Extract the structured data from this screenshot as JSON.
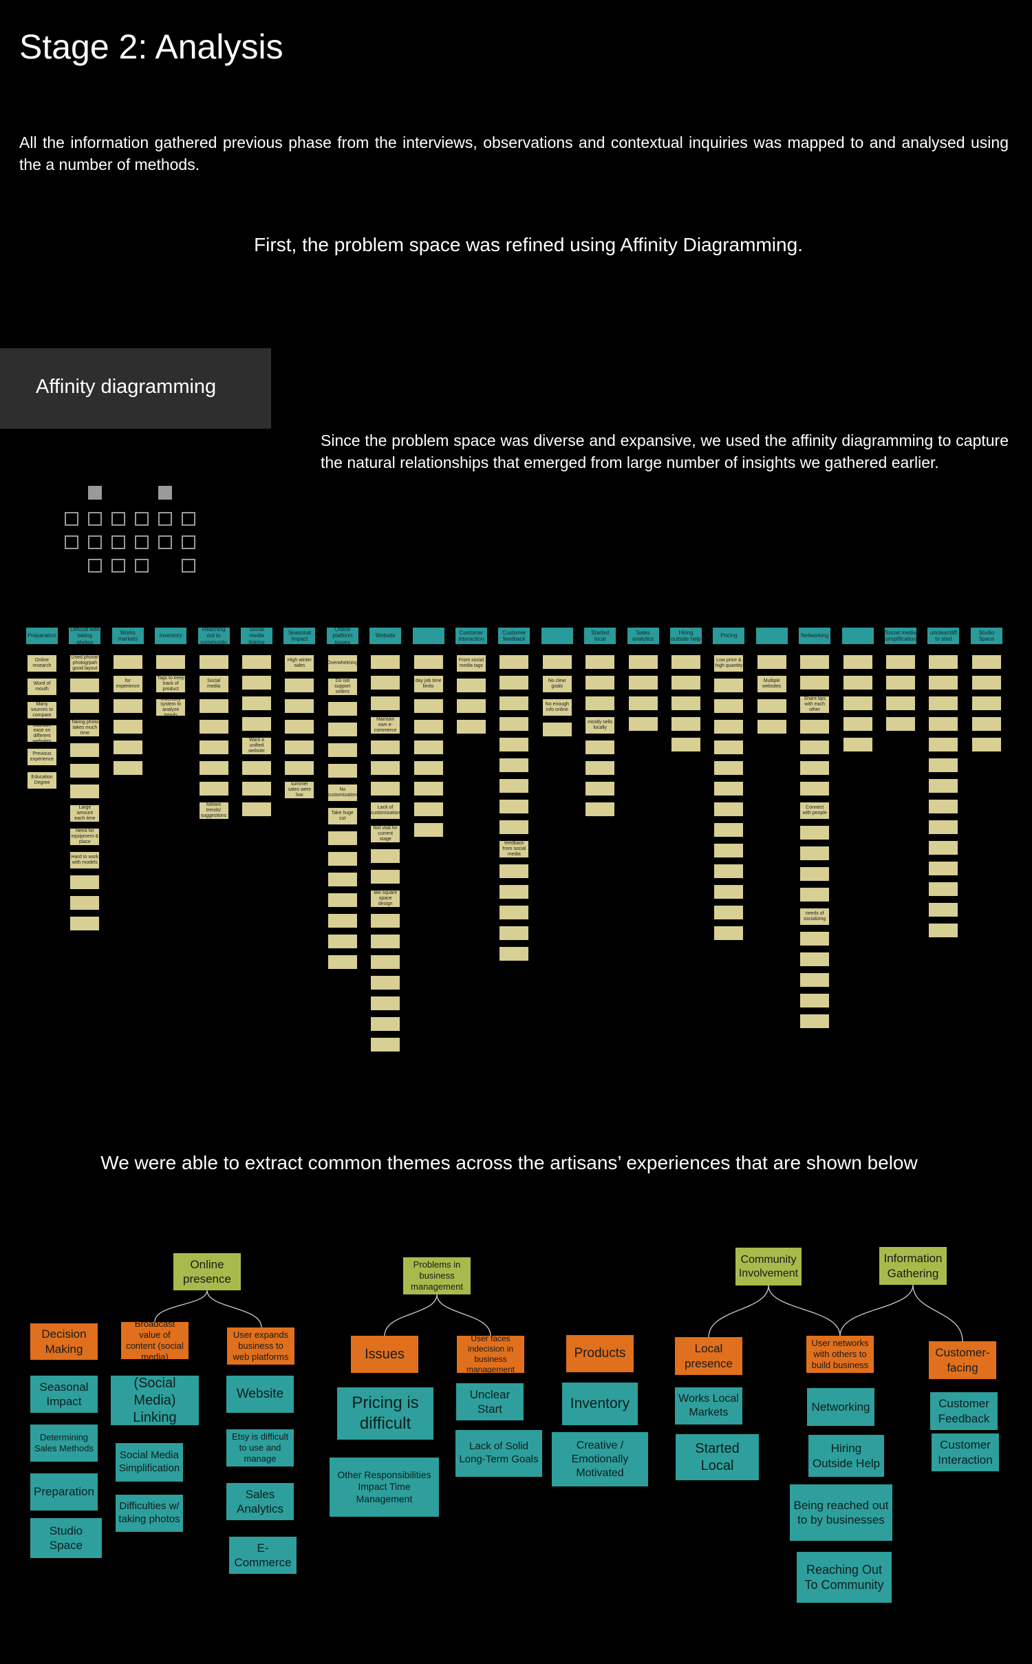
{
  "page": {
    "title": "Stage 2: Analysis",
    "intro": "All the information gathered previous phase from the interviews, observations and contextual inquiries was mapped to and analysed using the a number of methods.",
    "first": "First, the problem space was refined using Affinity Diagramming.",
    "section_label": "Affinity diagramming",
    "section_desc": "Since the problem space was diverse and expansive, we used the affinity diagramming to capture the natural relationships that emerged from large number of insights we gathered earlier.",
    "themes_intro": "We were able to extract common themes across the artisans’ experiences that are shown below"
  },
  "colors": {
    "green": "#a9ba4c",
    "orange": "#e0701d",
    "teal": "#2e9f9c",
    "note": "#d8cf94"
  },
  "affinity_wall": {
    "columns": [
      {
        "header": "Preparation",
        "notes": [
          "Online research",
          "Word of mouth",
          "Many sources to compare",
          "Maintain ease on different websites",
          "Previous experience",
          "Education Degree"
        ]
      },
      {
        "header": "Difficult with taking photos",
        "notes": [
          "Used phone/ photogrpah good layout",
          "",
          "",
          "Taking photo takes much time",
          "",
          "",
          "",
          "Large amount each time",
          "Need for equipment & place",
          "Hard to work with models",
          "",
          "",
          ""
        ]
      },
      {
        "header": "Works markets",
        "notes": [
          "",
          "for experience",
          "",
          "",
          "",
          ""
        ]
      },
      {
        "header": "Inventory",
        "notes": [
          "",
          "Tags to keep track of product",
          "Inventory system to analyze trends"
        ]
      },
      {
        "header": "Reaching out to community",
        "notes": [
          "",
          "Social media",
          "",
          "",
          "",
          "",
          "",
          "follows trends/ suggestions"
        ]
      },
      {
        "header": "Social media linking",
        "notes": [
          "",
          "",
          "",
          "",
          "Want a unified website",
          "",
          "",
          ""
        ]
      },
      {
        "header": "Seasonal Impact",
        "notes": [
          "High winter sales",
          "",
          "",
          "",
          "",
          "",
          "summer sales were low"
        ]
      },
      {
        "header": "Online platform issues",
        "notes": [
          "Overwhelming",
          "Do not support sellers",
          "",
          "",
          "",
          "",
          "No customization",
          "Take huge cut",
          "",
          "",
          "",
          "",
          "",
          "",
          ""
        ]
      },
      {
        "header": "Website",
        "notes": [
          "",
          "",
          "",
          "Maintain own e-commerce",
          "",
          "",
          "",
          "Lack of customization",
          "Not vital for current stage",
          "",
          "",
          "like square space design",
          "",
          "",
          "",
          "",
          "",
          "",
          ""
        ]
      },
      {
        "header": "",
        "notes": [
          "",
          "day job time limits",
          "",
          "",
          "",
          "",
          "",
          "",
          ""
        ]
      },
      {
        "header": "Customer interaction",
        "notes": [
          "From social media tags",
          "",
          "",
          ""
        ]
      },
      {
        "header": "Customer feedback",
        "notes": [
          "",
          "",
          "",
          "",
          "",
          "",
          "",
          "",
          "",
          "feedback from social media",
          "",
          "",
          "",
          "",
          ""
        ]
      },
      {
        "header": "",
        "notes": [
          "",
          "No clear goals",
          "No enough info online",
          ""
        ]
      },
      {
        "header": "Started local",
        "notes": [
          "",
          "",
          "",
          "mostly sells locally",
          "",
          "",
          "",
          ""
        ]
      },
      {
        "header": "Sales analytics",
        "notes": [
          "",
          "",
          "",
          ""
        ]
      },
      {
        "header": "Hiring outside help",
        "notes": [
          "",
          "",
          "",
          "",
          ""
        ]
      },
      {
        "header": "Pricing",
        "notes": [
          "Low price & high quantity",
          "",
          "",
          "",
          "",
          "",
          "",
          "",
          "",
          "",
          "",
          "",
          "",
          ""
        ]
      },
      {
        "header": "",
        "notes": [
          "",
          "Multiple websites",
          "",
          ""
        ]
      },
      {
        "header": "Networking",
        "notes": [
          "",
          "",
          "Share tips with each other",
          "",
          "",
          "",
          "",
          "Connect with people",
          "",
          "",
          "",
          "",
          "needs of socializing",
          "",
          "",
          "",
          "",
          ""
        ]
      },
      {
        "header": "",
        "notes": [
          "",
          "",
          "",
          "",
          ""
        ]
      },
      {
        "header": "Social media simplification",
        "notes": [
          "",
          "",
          "",
          ""
        ]
      },
      {
        "header": "unclear/diff to start",
        "notes": [
          "",
          "",
          "",
          "",
          "",
          "",
          "",
          "",
          "",
          "",
          "",
          "",
          "",
          ""
        ]
      },
      {
        "header": "Studio Space",
        "notes": [
          "",
          "",
          "",
          "",
          ""
        ]
      }
    ]
  },
  "theme_tree": {
    "roots": [
      {
        "label": "Online presence"
      },
      {
        "label": "Problems in business management"
      },
      {
        "label": "Community Involvement"
      },
      {
        "label": "Information Gathering"
      }
    ],
    "categories": [
      {
        "label": "Decision Making",
        "items": [
          "Seasonal Impact",
          "Determining Sales Methods",
          "Preparation",
          "Studio Space"
        ]
      },
      {
        "label": "Broadcast value of content (social media)",
        "items": [
          "(Social Media) Linking",
          "Social Media Simplification",
          "Difficulties w/ taking photos"
        ]
      },
      {
        "label": "User expands business to web platforms",
        "items": [
          "Website",
          "Etsy is difficult to use and manage",
          "Sales Analytics",
          "E-Commerce"
        ]
      },
      {
        "label": "Issues",
        "items": [
          "Pricing is difficult",
          "Other Responsibilities Impact Time Management"
        ]
      },
      {
        "label": "User faces indecision in business management",
        "items": [
          "Unclear Start",
          "Lack of Solid Long-Term Goals"
        ]
      },
      {
        "label": "Products",
        "items": [
          "Inventory",
          "Creative / Emotionally Motivated"
        ]
      },
      {
        "label": "Local presence",
        "items": [
          "Works Local Markets",
          "Started Local"
        ]
      },
      {
        "label": "User networks with others to build business",
        "items": [
          "Networking",
          "Hiring Outside Help",
          "Being reached out to by businesses",
          "Reaching Out To Community"
        ]
      },
      {
        "label": "Customer-facing",
        "items": [
          "Customer Feedback",
          "Customer Interaction"
        ]
      }
    ]
  }
}
